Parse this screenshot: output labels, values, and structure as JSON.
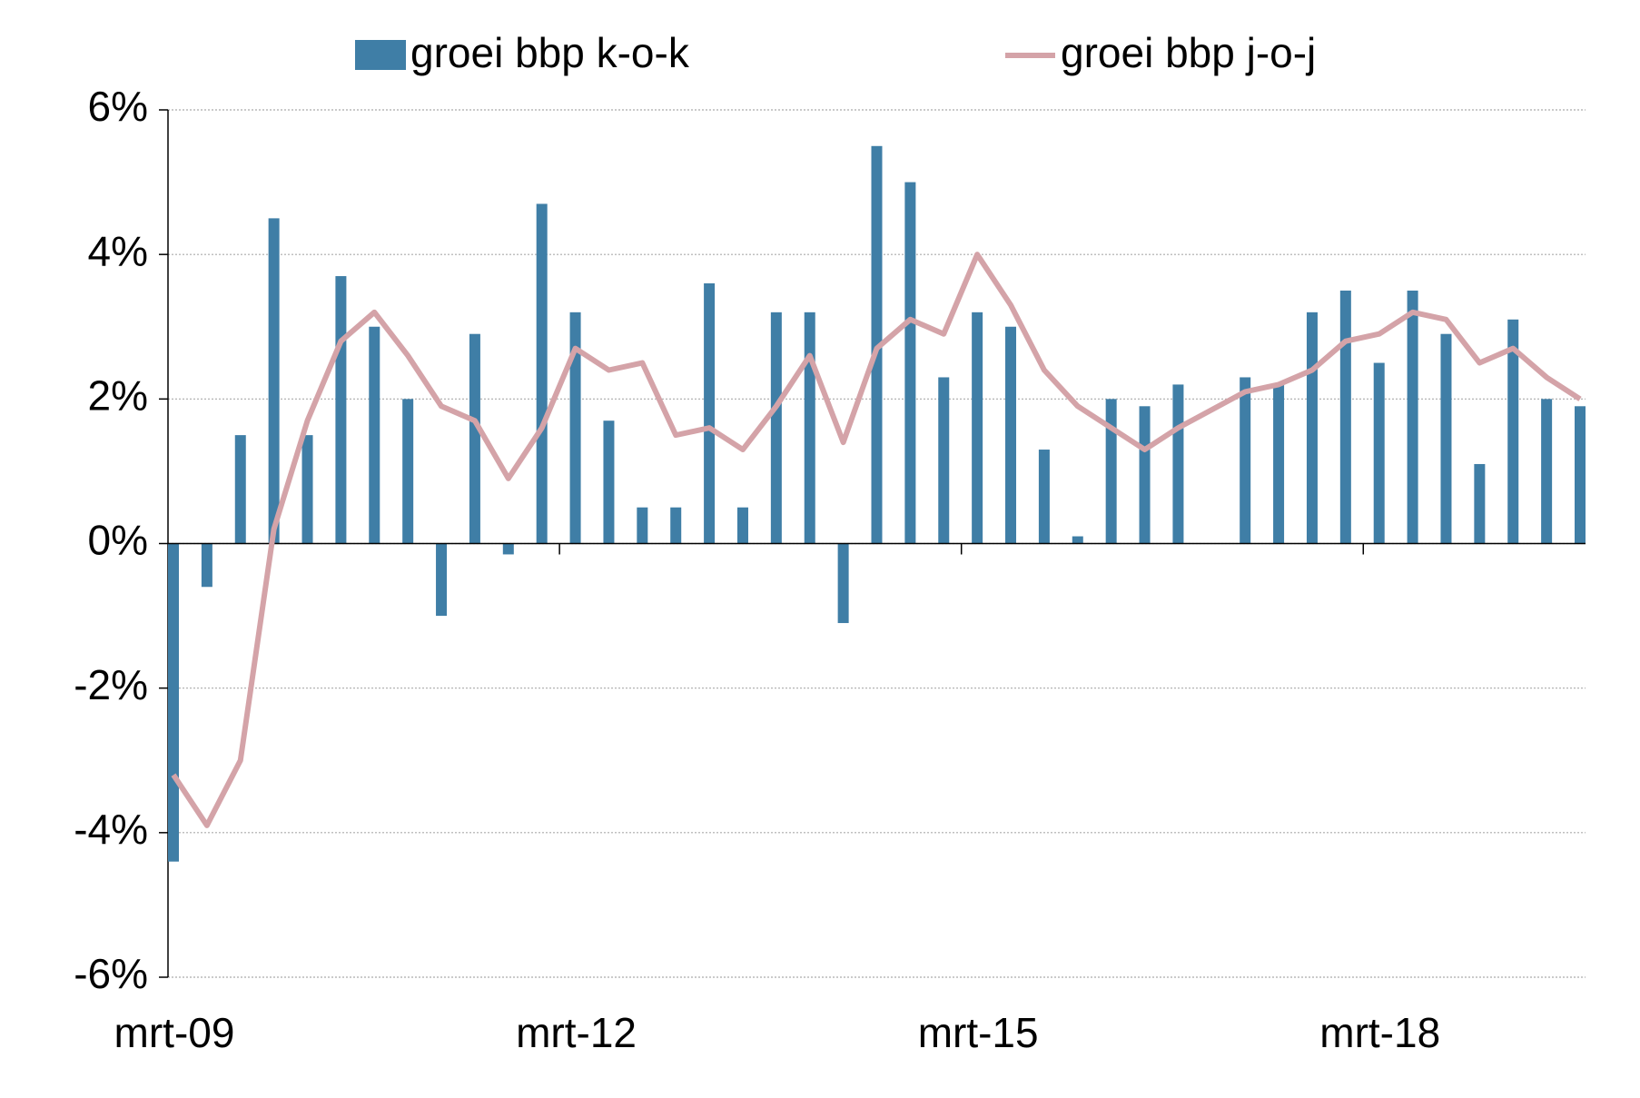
{
  "chart_data": {
    "type": "bar-line",
    "categories": [
      "mrt-09",
      null,
      null,
      null,
      null,
      null,
      null,
      null,
      null,
      null,
      null,
      null,
      "mrt-12",
      null,
      null,
      null,
      null,
      null,
      null,
      null,
      null,
      null,
      null,
      null,
      "mrt-15",
      null,
      null,
      null,
      null,
      null,
      null,
      null,
      null,
      null,
      null,
      null,
      "mrt-18",
      null,
      null,
      null,
      null,
      null,
      null
    ],
    "series": [
      {
        "name": "groei bbp k-o-k",
        "type": "bar",
        "color": "#3f7ea6",
        "values": [
          -4.4,
          -0.6,
          1.5,
          4.5,
          1.5,
          3.7,
          3.0,
          2.0,
          -1.0,
          2.9,
          -0.15,
          4.7,
          3.2,
          1.7,
          0.5,
          0.5,
          3.6,
          0.5,
          3.2,
          3.2,
          -1.1,
          5.5,
          5.0,
          2.3,
          3.2,
          3.0,
          1.3,
          0.1,
          2.0,
          1.9,
          2.2,
          0,
          2.3,
          2.2,
          3.2,
          3.5,
          2.5,
          3.5,
          2.9,
          1.1,
          3.1,
          2.0,
          1.9
        ]
      },
      {
        "name": "groei bbp j-o-j",
        "type": "line",
        "color": "#d4a3a8",
        "values": [
          -3.2,
          -3.9,
          -3.0,
          0.2,
          1.7,
          2.8,
          3.2,
          2.6,
          1.9,
          1.7,
          0.9,
          1.6,
          2.7,
          2.4,
          2.5,
          1.5,
          1.6,
          1.3,
          1.9,
          2.6,
          1.4,
          2.7,
          3.1,
          2.9,
          4.0,
          3.3,
          2.4,
          1.9,
          1.6,
          1.3,
          1.6,
          1.85,
          2.1,
          2.2,
          2.4,
          2.8,
          2.9,
          3.2,
          3.1,
          2.5,
          2.7,
          2.3,
          2.0
        ]
      }
    ],
    "ylim": [
      -6,
      6
    ],
    "yticks": [
      {
        "value": -6,
        "label": "-6%"
      },
      {
        "value": -4,
        "label": "-4%"
      },
      {
        "value": -2,
        "label": "-2%"
      },
      {
        "value": 0,
        "label": "0%"
      },
      {
        "value": 2,
        "label": "2%"
      },
      {
        "value": 4,
        "label": "4%"
      },
      {
        "value": 6,
        "label": "6%"
      }
    ],
    "grid": true,
    "legend": "top"
  }
}
